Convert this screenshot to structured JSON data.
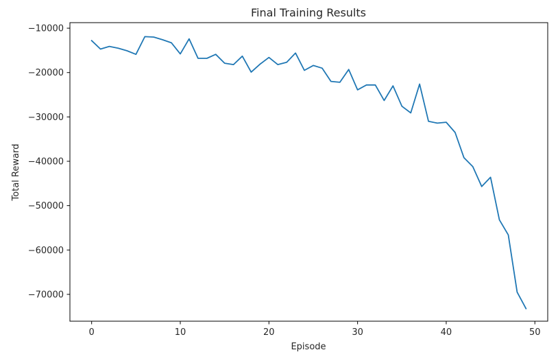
{
  "chart_data": {
    "type": "line",
    "title": "Final Training Results",
    "xlabel": "Episode",
    "ylabel": "Total Reward",
    "xlim": [
      -2.45,
      51.45
    ],
    "ylim": [
      -76050,
      -8750
    ],
    "x_ticks": [
      0,
      10,
      20,
      30,
      40,
      50
    ],
    "y_ticks": [
      -70000,
      -60000,
      -50000,
      -40000,
      -30000,
      -20000,
      -10000
    ],
    "x_tick_labels": [
      "0",
      "10",
      "20",
      "30",
      "40",
      "50"
    ],
    "y_tick_labels": [
      "−70000",
      "−60000",
      "−50000",
      "−40000",
      "−30000",
      "−20000",
      "−10000"
    ],
    "grid": false,
    "series": [
      {
        "color": "#1f77b4",
        "x": [
          0,
          1,
          2,
          3,
          4,
          5,
          6,
          7,
          8,
          9,
          10,
          11,
          12,
          13,
          14,
          15,
          16,
          17,
          18,
          19,
          20,
          21,
          22,
          23,
          24,
          25,
          26,
          27,
          28,
          29,
          30,
          31,
          32,
          33,
          34,
          35,
          36,
          37,
          38,
          39,
          40,
          41,
          42,
          43,
          44,
          45,
          46,
          47,
          48,
          49
        ],
        "y": [
          -12800,
          -14700,
          -14100,
          -14500,
          -15100,
          -15900,
          -11900,
          -12000,
          -12600,
          -13300,
          -15800,
          -12400,
          -16800,
          -16800,
          -15900,
          -17900,
          -18200,
          -16300,
          -19900,
          -18100,
          -16600,
          -18200,
          -17700,
          -15600,
          -19500,
          -18400,
          -19000,
          -22000,
          -22200,
          -19300,
          -23900,
          -22800,
          -22800,
          -26300,
          -23000,
          -27600,
          -29100,
          -22600,
          -31000,
          -31400,
          -31200,
          -33500,
          -39200,
          -41200,
          -45700,
          -43600,
          -53200,
          -56600,
          -69500,
          -73200
        ]
      }
    ]
  }
}
